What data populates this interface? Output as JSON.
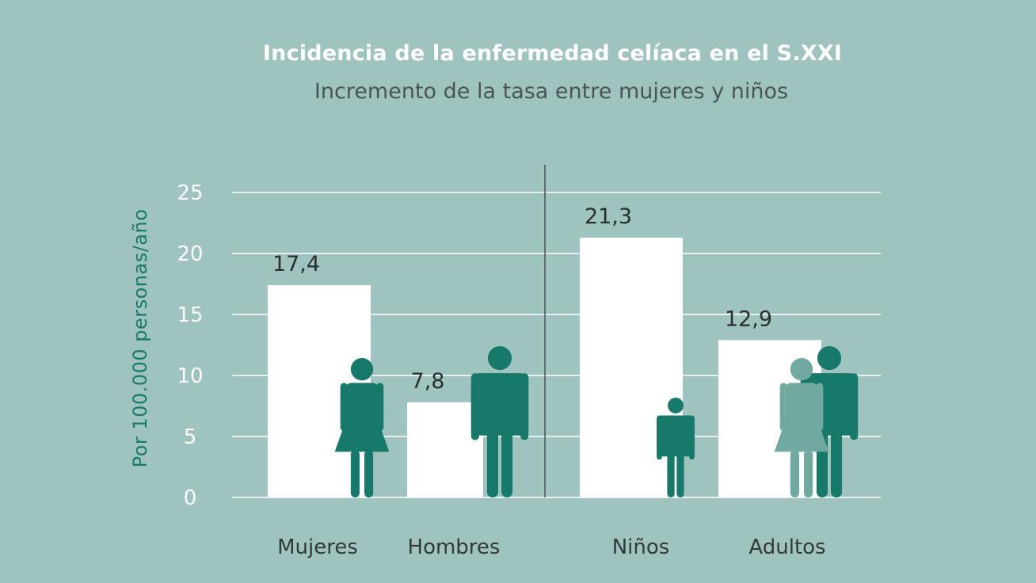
{
  "chart_data": {
    "type": "bar",
    "title": "Incidencia de la enfermedad celíaca en el S.XXI",
    "subtitle": "Incremento de la tasa entre mujeres y niños",
    "ylabel": "Por 100.000 personas/año",
    "xlabel": "",
    "ylim": [
      0,
      25
    ],
    "yticks": [
      "0",
      "5",
      "10",
      "15",
      "20",
      "25"
    ],
    "grid": true,
    "categories": [
      "Mujeres",
      "Hombres",
      "Niños",
      "Adultos"
    ],
    "values": [
      17.4,
      7.8,
      21.3,
      12.9
    ],
    "data_labels": [
      "17,4",
      "7,8",
      "21,3",
      "12,9"
    ],
    "groups": [
      [
        "Mujeres",
        "Hombres"
      ],
      [
        "Niños",
        "Adultos"
      ]
    ],
    "icons": [
      "woman-icon",
      "man-icon",
      "child-icon",
      "woman-and-man-icon"
    ],
    "colors": {
      "background": "#9fc4bf",
      "bars": "#ffffff",
      "icon": "#17796a",
      "icon_secondary": "#6fa9a0",
      "grid": "#ffffff",
      "separator": "#4a5654"
    }
  }
}
